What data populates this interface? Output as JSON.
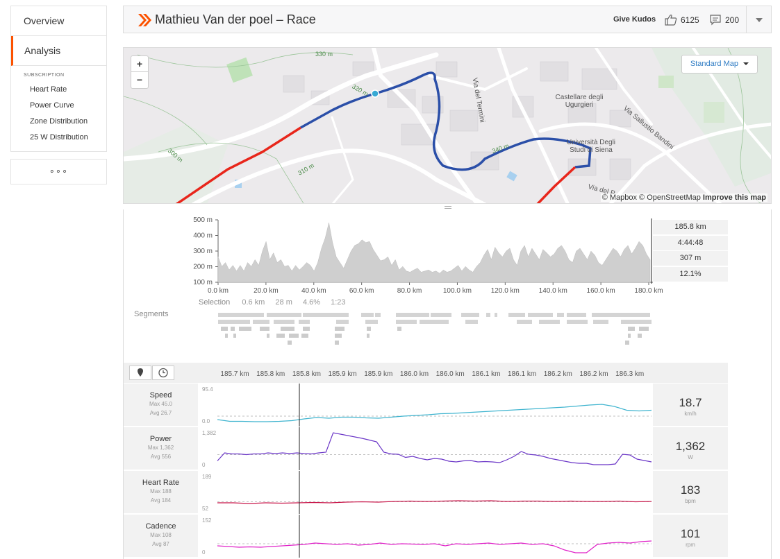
{
  "sidebar": {
    "nav": [
      {
        "label": "Overview",
        "active": false
      },
      {
        "label": "Analysis",
        "active": true
      }
    ],
    "subscription_heading": "SUBSCRIPTION",
    "sub_items": [
      "Heart Rate",
      "Power Curve",
      "Zone Distribution",
      "25 W Distribution"
    ],
    "more_label": "∘∘∘"
  },
  "header": {
    "title": "Mathieu Van der poel – Race",
    "give_kudos": "Give Kudos",
    "kudos_count": "6125",
    "comment_count": "200"
  },
  "map": {
    "zoom_in": "+",
    "zoom_out": "−",
    "map_type": "Standard Map",
    "attribution": "© Mapbox © OpenStreetMap",
    "improve": "Improve this map",
    "labels": [
      "Castellare degli Ugurgieri",
      "Università Degli Studi di Siena",
      "Via del Termini",
      "Via Sallustio Bandini",
      "Via del P",
      "330 m",
      "320 m",
      "310 m",
      "300 m",
      "340 m"
    ],
    "colors": {
      "route_red": "#e8261b",
      "route_blue": "#2b4fa8",
      "marker": "#37a9d4"
    }
  },
  "elevation": {
    "y_ticks": [
      "500 m",
      "400 m",
      "300 m",
      "200 m",
      "100 m"
    ],
    "x_ticks": [
      "0.0 km",
      "20.0 km",
      "40.0 km",
      "60.0 km",
      "80.0 km",
      "100.0 km",
      "120.0 km",
      "140.0 km",
      "160.0 km",
      "180.0 km"
    ],
    "stats": [
      "185.8 km",
      "4:44:48",
      "307 m",
      "12.1%"
    ],
    "selection": {
      "label": "Selection",
      "distance": "0.6 km",
      "elev": "28 m",
      "grade": "4.6%",
      "time": "1:23"
    },
    "segments_label": "Segments"
  },
  "zoom_axis": {
    "ticks": [
      "185.7 km",
      "185.8 km",
      "185.8 km",
      "185.9 km",
      "185.9 km",
      "186.0 km",
      "186.0 km",
      "186.1 km",
      "186.1 km",
      "186.2 km",
      "186.2 km",
      "186.3 km"
    ]
  },
  "metrics": [
    {
      "name": "Speed",
      "max": "Max 45.0",
      "avg": "Avg 26.7",
      "axis_max": "95.4",
      "axis_min": "0.0",
      "value": "18.7",
      "unit": "km/h",
      "color": "#3fb4cf"
    },
    {
      "name": "Power",
      "max": "Max 1,362",
      "avg": "Avg 556",
      "axis_max": "1,382",
      "axis_min": "0",
      "value": "1,362",
      "unit": "W",
      "color": "#6a35c7"
    },
    {
      "name": "Heart Rate",
      "max": "Max 188",
      "avg": "Avg 184",
      "axis_max": "189",
      "axis_min": "52",
      "value": "183",
      "unit": "bpm",
      "color": "#c8174a"
    },
    {
      "name": "Cadence",
      "max": "Max 108",
      "avg": "Avg 87",
      "axis_max": "152",
      "axis_min": "0",
      "value": "101",
      "unit": "rpm",
      "color": "#e020c8"
    }
  ]
}
